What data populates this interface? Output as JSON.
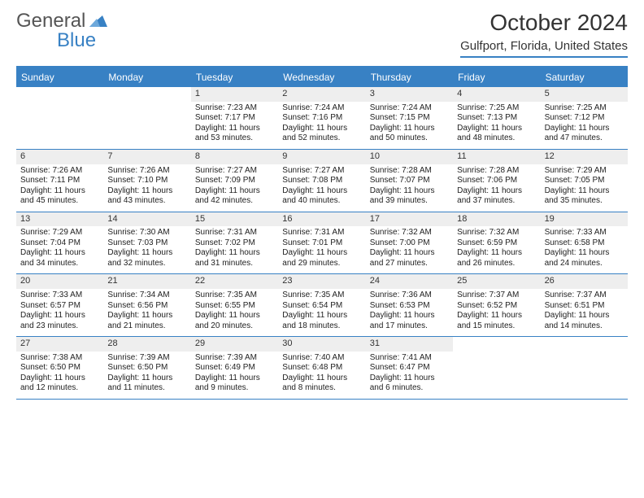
{
  "brand": {
    "part1": "General",
    "part2": "Blue",
    "tri_color": "#3881c4",
    "text_color_gray": "#555555"
  },
  "title": "October 2024",
  "location": "Gulfport, Florida, United States",
  "colors": {
    "accent": "#3881c4",
    "daynum_bg": "#eeeeee",
    "text": "#222222",
    "bg": "#ffffff"
  },
  "typography": {
    "title_fontsize": 28,
    "location_fontsize": 15,
    "header_fontsize": 12,
    "cell_fontsize": 10
  },
  "day_headers": [
    "Sunday",
    "Monday",
    "Tuesday",
    "Wednesday",
    "Thursday",
    "Friday",
    "Saturday"
  ],
  "weeks": [
    [
      {
        "n": "",
        "lines": []
      },
      {
        "n": "",
        "lines": []
      },
      {
        "n": "1",
        "lines": [
          "Sunrise: 7:23 AM",
          "Sunset: 7:17 PM",
          "Daylight: 11 hours",
          "and 53 minutes."
        ]
      },
      {
        "n": "2",
        "lines": [
          "Sunrise: 7:24 AM",
          "Sunset: 7:16 PM",
          "Daylight: 11 hours",
          "and 52 minutes."
        ]
      },
      {
        "n": "3",
        "lines": [
          "Sunrise: 7:24 AM",
          "Sunset: 7:15 PM",
          "Daylight: 11 hours",
          "and 50 minutes."
        ]
      },
      {
        "n": "4",
        "lines": [
          "Sunrise: 7:25 AM",
          "Sunset: 7:13 PM",
          "Daylight: 11 hours",
          "and 48 minutes."
        ]
      },
      {
        "n": "5",
        "lines": [
          "Sunrise: 7:25 AM",
          "Sunset: 7:12 PM",
          "Daylight: 11 hours",
          "and 47 minutes."
        ]
      }
    ],
    [
      {
        "n": "6",
        "lines": [
          "Sunrise: 7:26 AM",
          "Sunset: 7:11 PM",
          "Daylight: 11 hours",
          "and 45 minutes."
        ]
      },
      {
        "n": "7",
        "lines": [
          "Sunrise: 7:26 AM",
          "Sunset: 7:10 PM",
          "Daylight: 11 hours",
          "and 43 minutes."
        ]
      },
      {
        "n": "8",
        "lines": [
          "Sunrise: 7:27 AM",
          "Sunset: 7:09 PM",
          "Daylight: 11 hours",
          "and 42 minutes."
        ]
      },
      {
        "n": "9",
        "lines": [
          "Sunrise: 7:27 AM",
          "Sunset: 7:08 PM",
          "Daylight: 11 hours",
          "and 40 minutes."
        ]
      },
      {
        "n": "10",
        "lines": [
          "Sunrise: 7:28 AM",
          "Sunset: 7:07 PM",
          "Daylight: 11 hours",
          "and 39 minutes."
        ]
      },
      {
        "n": "11",
        "lines": [
          "Sunrise: 7:28 AM",
          "Sunset: 7:06 PM",
          "Daylight: 11 hours",
          "and 37 minutes."
        ]
      },
      {
        "n": "12",
        "lines": [
          "Sunrise: 7:29 AM",
          "Sunset: 7:05 PM",
          "Daylight: 11 hours",
          "and 35 minutes."
        ]
      }
    ],
    [
      {
        "n": "13",
        "lines": [
          "Sunrise: 7:29 AM",
          "Sunset: 7:04 PM",
          "Daylight: 11 hours",
          "and 34 minutes."
        ]
      },
      {
        "n": "14",
        "lines": [
          "Sunrise: 7:30 AM",
          "Sunset: 7:03 PM",
          "Daylight: 11 hours",
          "and 32 minutes."
        ]
      },
      {
        "n": "15",
        "lines": [
          "Sunrise: 7:31 AM",
          "Sunset: 7:02 PM",
          "Daylight: 11 hours",
          "and 31 minutes."
        ]
      },
      {
        "n": "16",
        "lines": [
          "Sunrise: 7:31 AM",
          "Sunset: 7:01 PM",
          "Daylight: 11 hours",
          "and 29 minutes."
        ]
      },
      {
        "n": "17",
        "lines": [
          "Sunrise: 7:32 AM",
          "Sunset: 7:00 PM",
          "Daylight: 11 hours",
          "and 27 minutes."
        ]
      },
      {
        "n": "18",
        "lines": [
          "Sunrise: 7:32 AM",
          "Sunset: 6:59 PM",
          "Daylight: 11 hours",
          "and 26 minutes."
        ]
      },
      {
        "n": "19",
        "lines": [
          "Sunrise: 7:33 AM",
          "Sunset: 6:58 PM",
          "Daylight: 11 hours",
          "and 24 minutes."
        ]
      }
    ],
    [
      {
        "n": "20",
        "lines": [
          "Sunrise: 7:33 AM",
          "Sunset: 6:57 PM",
          "Daylight: 11 hours",
          "and 23 minutes."
        ]
      },
      {
        "n": "21",
        "lines": [
          "Sunrise: 7:34 AM",
          "Sunset: 6:56 PM",
          "Daylight: 11 hours",
          "and 21 minutes."
        ]
      },
      {
        "n": "22",
        "lines": [
          "Sunrise: 7:35 AM",
          "Sunset: 6:55 PM",
          "Daylight: 11 hours",
          "and 20 minutes."
        ]
      },
      {
        "n": "23",
        "lines": [
          "Sunrise: 7:35 AM",
          "Sunset: 6:54 PM",
          "Daylight: 11 hours",
          "and 18 minutes."
        ]
      },
      {
        "n": "24",
        "lines": [
          "Sunrise: 7:36 AM",
          "Sunset: 6:53 PM",
          "Daylight: 11 hours",
          "and 17 minutes."
        ]
      },
      {
        "n": "25",
        "lines": [
          "Sunrise: 7:37 AM",
          "Sunset: 6:52 PM",
          "Daylight: 11 hours",
          "and 15 minutes."
        ]
      },
      {
        "n": "26",
        "lines": [
          "Sunrise: 7:37 AM",
          "Sunset: 6:51 PM",
          "Daylight: 11 hours",
          "and 14 minutes."
        ]
      }
    ],
    [
      {
        "n": "27",
        "lines": [
          "Sunrise: 7:38 AM",
          "Sunset: 6:50 PM",
          "Daylight: 11 hours",
          "and 12 minutes."
        ]
      },
      {
        "n": "28",
        "lines": [
          "Sunrise: 7:39 AM",
          "Sunset: 6:50 PM",
          "Daylight: 11 hours",
          "and 11 minutes."
        ]
      },
      {
        "n": "29",
        "lines": [
          "Sunrise: 7:39 AM",
          "Sunset: 6:49 PM",
          "Daylight: 11 hours",
          "and 9 minutes."
        ]
      },
      {
        "n": "30",
        "lines": [
          "Sunrise: 7:40 AM",
          "Sunset: 6:48 PM",
          "Daylight: 11 hours",
          "and 8 minutes."
        ]
      },
      {
        "n": "31",
        "lines": [
          "Sunrise: 7:41 AM",
          "Sunset: 6:47 PM",
          "Daylight: 11 hours",
          "and 6 minutes."
        ]
      },
      {
        "n": "",
        "lines": []
      },
      {
        "n": "",
        "lines": []
      }
    ]
  ]
}
